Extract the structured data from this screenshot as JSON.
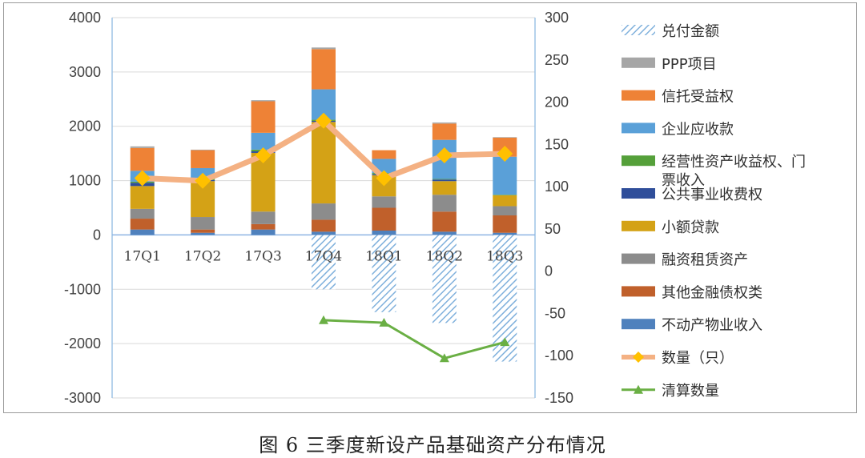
{
  "caption": "图 6  三季度新设产品基础资产分布情况",
  "chart_data": {
    "type": "bar",
    "stacked": true,
    "categories": [
      "17Q1",
      "17Q2",
      "17Q3",
      "17Q4",
      "18Q1",
      "18Q2",
      "18Q3"
    ],
    "left_axis": {
      "range": [
        -3000,
        4000
      ],
      "ticks": [
        "4000",
        "3000",
        "2000",
        "1000",
        "0",
        "-1000",
        "-2000",
        "-3000"
      ]
    },
    "right_axis": {
      "range": [
        -150,
        300
      ],
      "ticks": [
        "300",
        "250",
        "200",
        "150",
        "100",
        "50",
        "0",
        "-50",
        "-100",
        "-150"
      ]
    },
    "legend_position": "right",
    "colors": {
      "不动产物业收入": "#4f81bd",
      "其他金融债权类": "#c0602b",
      "融资租赁资产": "#8c8c8c",
      "小额贷款": "#d4a216",
      "公共事业收费权": "#2f4e9a",
      "经营性资产收益权、门票收入": "#55a03a",
      "企业应收款": "#5aa0d8",
      "信托受益权": "#ee8236",
      "PPP项目": "#a6a6a6",
      "兑付金额": "#9cc3e6",
      "数量（只）": "#f4b183",
      "数量marker": "#ffc000",
      "清算数量": "#6aaf44"
    },
    "stack_series": [
      {
        "name": "不动产物业收入",
        "values": [
          100,
          40,
          100,
          60,
          80,
          60,
          40
        ]
      },
      {
        "name": "其他金融债权类",
        "values": [
          200,
          60,
          100,
          220,
          420,
          370,
          320
        ]
      },
      {
        "name": "融资租赁资产",
        "values": [
          180,
          230,
          230,
          300,
          210,
          310,
          170
        ]
      },
      {
        "name": "小额贷款",
        "values": [
          420,
          660,
          1080,
          1500,
          390,
          250,
          200
        ]
      },
      {
        "name": "公共事业收费权",
        "values": [
          60,
          20,
          30,
          20,
          20,
          30,
          0
        ]
      },
      {
        "name": "经营性资产收益权、门票收入",
        "values": [
          20,
          20,
          30,
          20,
          20,
          10,
          10
        ]
      },
      {
        "name": "企业应收款",
        "values": [
          200,
          200,
          310,
          560,
          260,
          720,
          700
        ]
      },
      {
        "name": "信托受益权",
        "values": [
          420,
          330,
          580,
          740,
          160,
          300,
          350
        ]
      },
      {
        "name": "PPP项目",
        "values": [
          30,
          10,
          20,
          30,
          0,
          20,
          10
        ]
      }
    ],
    "payout_series": {
      "name": "兑付金额",
      "axis": "left",
      "values": [
        null,
        null,
        null,
        -1000,
        -1420,
        -1620,
        -2330
      ]
    },
    "line_series": [
      {
        "name": "数量（只）",
        "axis": "right",
        "values": [
          110,
          107,
          137,
          178,
          110,
          137,
          139
        ]
      },
      {
        "name": "清算数量",
        "axis": "right",
        "values": [
          null,
          null,
          null,
          -58,
          -61,
          -103,
          -84
        ]
      }
    ],
    "legend": [
      "兑付金额",
      "PPP项目",
      "信托受益权",
      "企业应收款",
      "经营性资产收益权、门\n票收入",
      "公共事业收费权",
      "小额贷款",
      "融资租赁资产",
      "其他金融债权类",
      "不动产物业收入",
      "数量（只）",
      "清算数量"
    ]
  }
}
